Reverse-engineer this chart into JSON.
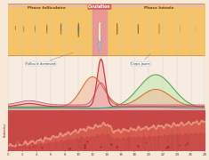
{
  "title_left": "Phase folliculaire",
  "title_ovulation": "Ovulation",
  "title_right": "Phase lutéale",
  "x_ticks": [
    0,
    2,
    4,
    6,
    8,
    10,
    12,
    14,
    16,
    18,
    20,
    22,
    24,
    26,
    28
  ],
  "xlim": [
    0,
    28
  ],
  "bg_color": "#f8e8d8",
  "header_yellow": "#f5c060",
  "header_pink": "#e8a0a0",
  "grid_color": "#b0c8d8",
  "label_follicle": "Follicule dominant",
  "label_corpus": "Corps jaune",
  "lh_color": "#e06060",
  "fsh_color": "#c060a0",
  "estrogen_color": "#e09060",
  "prog_color": "#60a860",
  "lh_fill": "#e8a0a0",
  "fsh_fill": "#e0b0c8",
  "estrogen_fill": "#f0c090",
  "prog_fill": "#a0d0a0",
  "endo_base": "#c84040",
  "endo_mid": "#d87060",
  "endo_top": "#e8a090",
  "endo_light": "#f0c0b0"
}
